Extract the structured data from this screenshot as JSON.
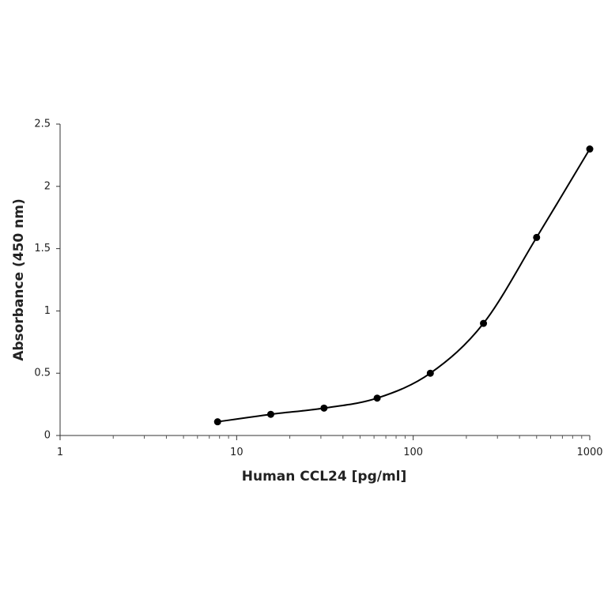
{
  "chart_data": {
    "type": "line",
    "x_label": "Human CCL24 [pg/ml]",
    "y_label": "Absorbance (450 nm)",
    "xlog": true,
    "smooth": true,
    "marker": "circle",
    "series": [
      {
        "color": "#000000",
        "x": [
          7.8,
          15.6,
          31.25,
          62.5,
          125,
          250,
          500,
          1000
        ],
        "values": [
          0.11,
          0.17,
          0.22,
          0.3,
          0.5,
          0.9,
          1.59,
          2.3
        ]
      }
    ],
    "xlim": [
      1,
      1000
    ],
    "xticks": [
      1,
      10,
      100,
      1000
    ],
    "xminorticks": [
      2,
      3,
      4,
      5,
      6,
      7,
      8,
      9,
      20,
      30,
      40,
      50,
      60,
      70,
      80,
      90,
      200,
      300,
      400,
      500,
      600,
      700,
      800,
      900
    ],
    "ylim": [
      0,
      2.5
    ],
    "yticks": [
      0,
      0.5,
      1,
      1.5,
      2,
      2.5
    ],
    "grid": false
  }
}
